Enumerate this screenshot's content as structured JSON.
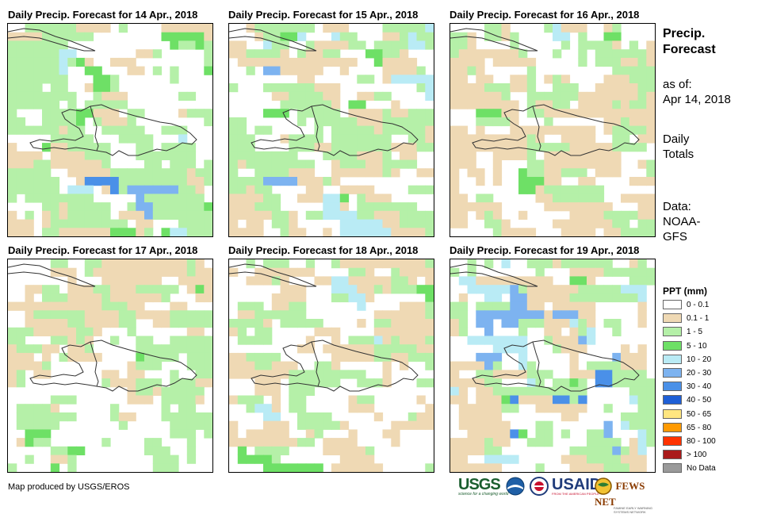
{
  "panels": [
    {
      "title": "Daily Precip. Forecast for 14 Apr., 2018"
    },
    {
      "title": "Daily Precip. Forecast for 15 Apr., 2018"
    },
    {
      "title": "Daily Precip. Forecast for 16 Apr., 2018"
    },
    {
      "title": "Daily Precip. Forecast for 17 Apr., 2018"
    },
    {
      "title": "Daily Precip. Forecast for 18 Apr., 2018"
    },
    {
      "title": "Daily Precip. Forecast for 19 Apr., 2018"
    }
  ],
  "side": {
    "title_line1": "Precip.",
    "title_line2": "Forecast",
    "asof_label": "as of:",
    "asof_date": "Apr 14, 2018",
    "daily_line1": "Daily",
    "daily_line2": "Totals",
    "data_line1": "Data:",
    "data_line2": "NOAA-",
    "data_line3": "GFS"
  },
  "legend": {
    "title": "PPT (mm)",
    "items": [
      {
        "label": "0 - 0.1",
        "color": "#ffffff"
      },
      {
        "label": "0.1 - 1",
        "color": "#efd9b4"
      },
      {
        "label": "1 - 5",
        "color": "#b5f0a8"
      },
      {
        "label": "5 - 10",
        "color": "#6ee066"
      },
      {
        "label": "10 - 20",
        "color": "#b9ebf5"
      },
      {
        "label": "20 - 30",
        "color": "#7db3f0"
      },
      {
        "label": "30 - 40",
        "color": "#4a90e8"
      },
      {
        "label": "40 - 50",
        "color": "#1e5fd6"
      },
      {
        "label": "50 - 65",
        "color": "#ffe680"
      },
      {
        "label": "65 - 80",
        "color": "#ff9a00"
      },
      {
        "label": "80 - 100",
        "color": "#ff3300"
      },
      {
        "label": "> 100",
        "color": "#aa1a1a"
      },
      {
        "label": "No Data",
        "color": "#9a9a9a"
      }
    ]
  },
  "credit": "Map produced by USGS/EROS",
  "logos": {
    "usgs": "USGS",
    "usgs_tagline": "science for a changing world",
    "usaid": "USAID",
    "usaid_tagline": "FROM THE AMERICAN PEOPLE",
    "fewsnet": "FEWS NET",
    "fewsnet_tagline": "FAMINE EARLY WARNING SYSTEMS NETWORK"
  },
  "colors": {
    "outline": "#333333"
  }
}
